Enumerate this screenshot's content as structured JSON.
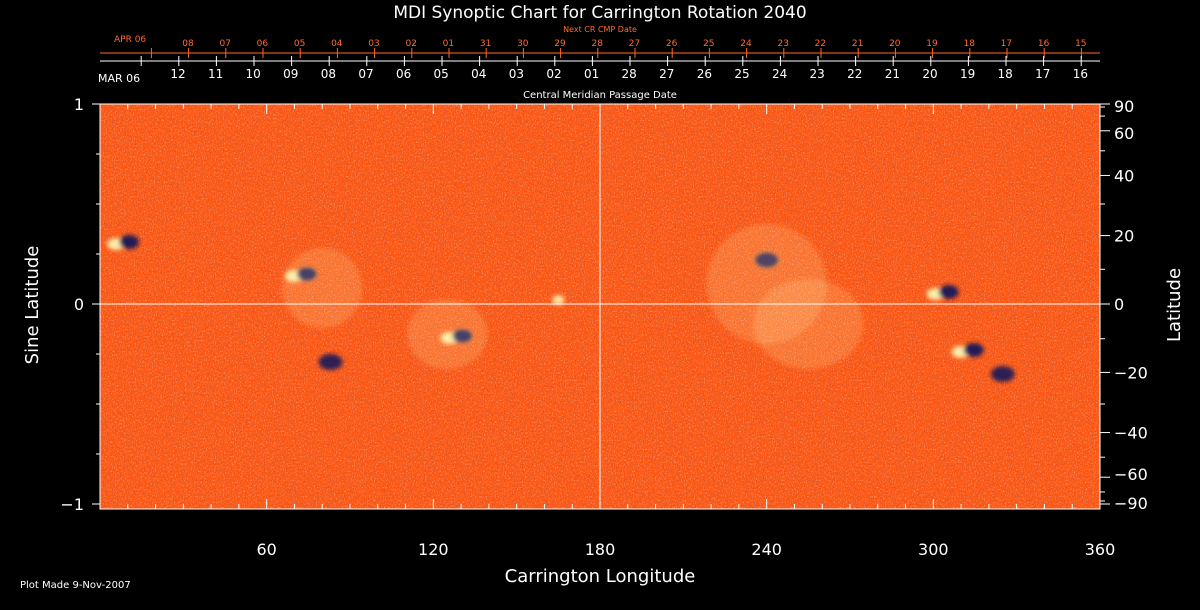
{
  "chart_data": {
    "type": "heatmap",
    "title": "MDI Synoptic Chart for Carrington Rotation 2040",
    "xlabel": "Carrington Longitude",
    "ylabel_left": "Sine Latitude",
    "ylabel_right": "Latitude",
    "xlim": [
      0,
      360
    ],
    "ylim": [
      -1,
      1
    ],
    "x_ticks": [
      60,
      120,
      180,
      240,
      300,
      360
    ],
    "y_ticks_left": [
      {
        "value": 1,
        "label": "1"
      },
      {
        "value": 0,
        "label": "0"
      },
      {
        "value": -1,
        "label": "−1"
      }
    ],
    "y_ticks_right": [
      {
        "deg": 90,
        "label": "90"
      },
      {
        "deg": 60,
        "label": "60"
      },
      {
        "deg": 40,
        "label": "40"
      },
      {
        "deg": 20,
        "label": "20"
      },
      {
        "deg": 0,
        "label": "0"
      },
      {
        "deg": -20,
        "label": "−20"
      },
      {
        "deg": -40,
        "label": "−40"
      },
      {
        "deg": -60,
        "label": "−60"
      },
      {
        "deg": -90,
        "label": "−90"
      }
    ],
    "top_axis_label": "Central Meridian Passage Date",
    "top_axis_start": "MAR 06",
    "top_axis_dates": [
      "12",
      "11",
      "10",
      "09",
      "08",
      "07",
      "06",
      "05",
      "04",
      "03",
      "02",
      "01",
      "28",
      "27",
      "26",
      "25",
      "24",
      "23",
      "22",
      "21",
      "20",
      "19",
      "18",
      "17",
      "16"
    ],
    "next_axis_label": "Next CR CMP Date",
    "next_axis_start": "APR 06",
    "next_axis_dates": [
      "08",
      "07",
      "06",
      "05",
      "04",
      "03",
      "02",
      "01",
      "31",
      "30",
      "29",
      "28",
      "27",
      "26",
      "25",
      "24",
      "23",
      "22",
      "21",
      "20",
      "19",
      "18",
      "17",
      "16",
      "15"
    ],
    "active_regions": [
      {
        "lon": 8,
        "sinlat": 0.3,
        "polarity": "mixed"
      },
      {
        "lon": 72,
        "sinlat": 0.14,
        "polarity": "mixed"
      },
      {
        "lon": 128,
        "sinlat": -0.17,
        "polarity": "mixed"
      },
      {
        "lon": 83,
        "sinlat": -0.29,
        "polarity": "negative"
      },
      {
        "lon": 165,
        "sinlat": 0.02,
        "polarity": "positive"
      },
      {
        "lon": 240,
        "sinlat": 0.22,
        "polarity": "negative"
      },
      {
        "lon": 303,
        "sinlat": 0.05,
        "polarity": "mixed"
      },
      {
        "lon": 312,
        "sinlat": -0.24,
        "polarity": "mixed"
      },
      {
        "lon": 325,
        "sinlat": -0.35,
        "polarity": "negative"
      }
    ],
    "colors": {
      "background": "#ff5a14",
      "positive": "#fff3b0",
      "negative": "#14145a",
      "text": "#ffffff",
      "secondary_axis": "#ff6a30"
    }
  },
  "footer": "Plot Made  9-Nov-2007"
}
